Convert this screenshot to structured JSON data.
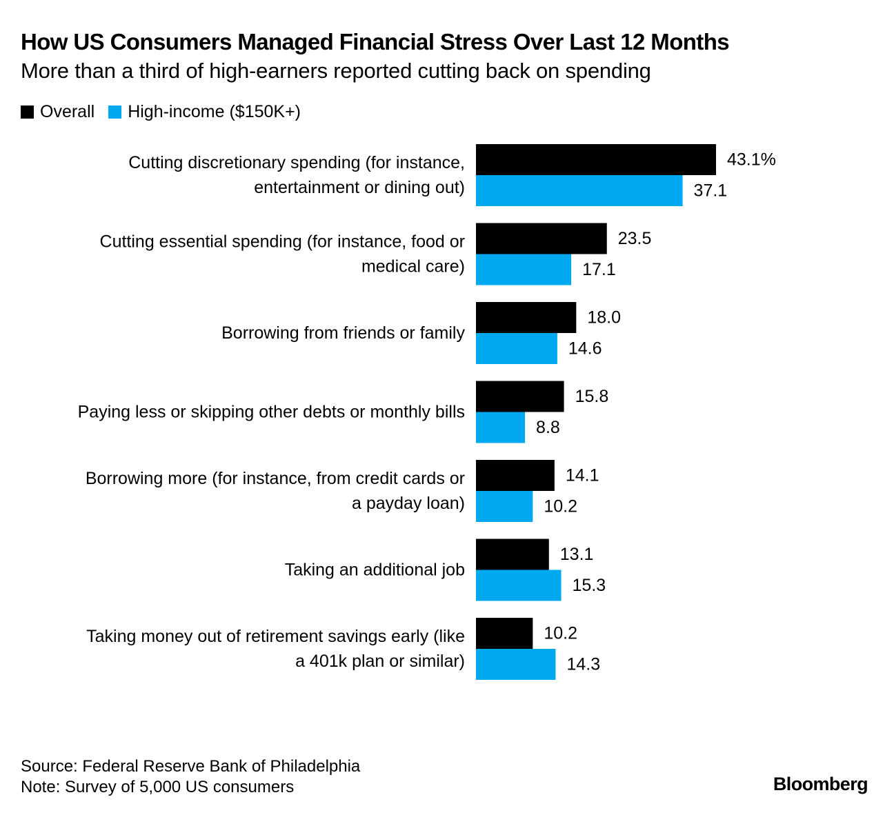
{
  "title": "How US Consumers Managed Financial Stress Over Last 12 Months",
  "subtitle": "More than a third of high-earners reported cutting back on spending",
  "legend": {
    "overall": "Overall",
    "high_income": "High-income ($150K+)"
  },
  "colors": {
    "overall": "#000000",
    "high_income": "#00a8f0"
  },
  "chart_data": {
    "type": "bar",
    "orientation": "horizontal",
    "title": "How US Consumers Managed Financial Stress Over Last 12 Months",
    "subtitle": "More than a third of high-earners reported cutting back on spending",
    "categories": [
      [
        "Cutting discretionary spending (for instance,",
        "entertainment or dining out)"
      ],
      [
        "Cutting essential spending (for instance, food or",
        "medical care)"
      ],
      [
        "Borrowing from friends or family"
      ],
      [
        "Paying less or skipping other debts or monthly bills"
      ],
      [
        "Borrowing more (for instance, from credit cards or",
        "a payday loan)"
      ],
      [
        "Taking an additional job"
      ],
      [
        "Taking money out of retirement savings early (like",
        "a 401k plan or similar)"
      ]
    ],
    "series": [
      {
        "name": "Overall",
        "values": [
          43.1,
          23.5,
          18.0,
          15.8,
          14.1,
          13.1,
          10.2
        ],
        "labels": [
          "43.1%",
          "23.5",
          "18.0",
          "15.8",
          "14.1",
          "13.1",
          "10.2"
        ]
      },
      {
        "name": "High-income ($150K+)",
        "values": [
          37.1,
          17.1,
          14.6,
          8.8,
          10.2,
          15.3,
          14.3
        ],
        "labels": [
          "37.1",
          "17.1",
          "14.6",
          "8.8",
          "10.2",
          "15.3",
          "14.3"
        ]
      }
    ],
    "xlim": [
      0,
      43.1
    ],
    "grid": false,
    "legend_position": "top-left"
  },
  "footer": {
    "source": "Source: Federal Reserve Bank of Philadelphia",
    "note": "Note: Survey of 5,000 US consumers",
    "brand": "Bloomberg"
  }
}
